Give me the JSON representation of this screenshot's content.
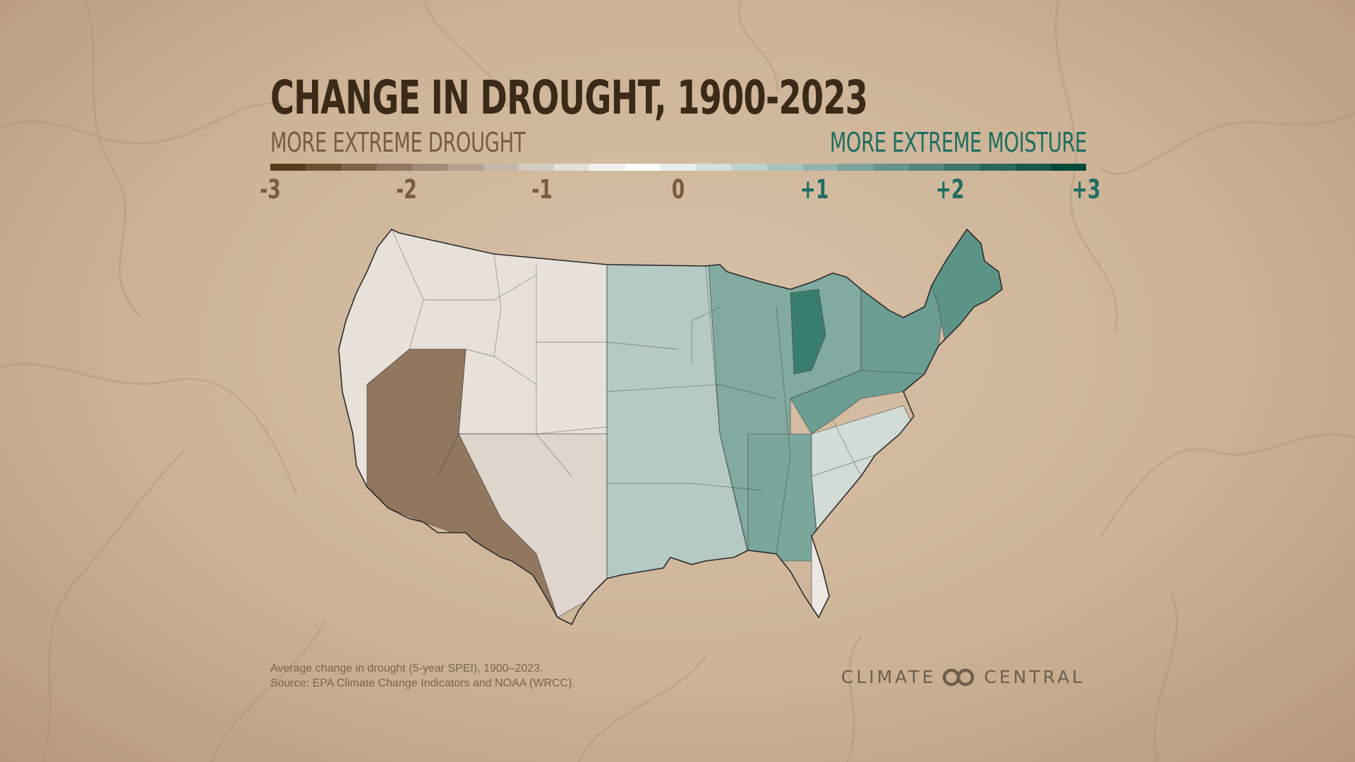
{
  "title": "CHANGE IN DROUGHT, 1900-2023",
  "legend": {
    "left_label": "MORE EXTREME DROUGHT",
    "right_label": "MORE EXTREME MOISTURE",
    "ticks": [
      "-3",
      "-2",
      "-1",
      "0",
      "+1",
      "+2",
      "+3"
    ],
    "tick_values": [
      -3,
      -2,
      -1,
      0,
      1,
      2,
      3
    ],
    "colors": [
      "#5a3a18",
      "#6e4f2d",
      "#806244",
      "#917660",
      "#a08a78",
      "#b2a190",
      "#c3b7aa",
      "#d4ccc3",
      "#e4dfda",
      "#f2f0ed",
      "#ffffff",
      "#e9eeed",
      "#d4e0dd",
      "#bfd1cd",
      "#a9c2bd",
      "#93b3ad",
      "#7da39c",
      "#68948c",
      "#54857c",
      "#3f766c",
      "#2b675c",
      "#16584c",
      "#03483d"
    ]
  },
  "map_colors": {
    "drought": "#6b4a28",
    "neutral": "#f5f2ee",
    "moisture": "#1c6b5c",
    "border": "#2a2a2a"
  },
  "map_values": {
    "west": -0.3,
    "southwest": -2.2,
    "central_west": -0.5,
    "plains": 0.9,
    "midwest": 1.6,
    "michigan": 2.6,
    "south": 1.7,
    "southeast": 0.5,
    "northeast": 1.9,
    "new_england": 2.1,
    "florida": -0.2
  },
  "footnote": {
    "line1": "Average change in drought (5-year SPEI), 1900–2023.",
    "line2": "Source: EPA Climate Change Indicators and NOAA (WRCC)."
  },
  "brand": {
    "left": "CLIMATE",
    "right": "CENTRAL"
  }
}
